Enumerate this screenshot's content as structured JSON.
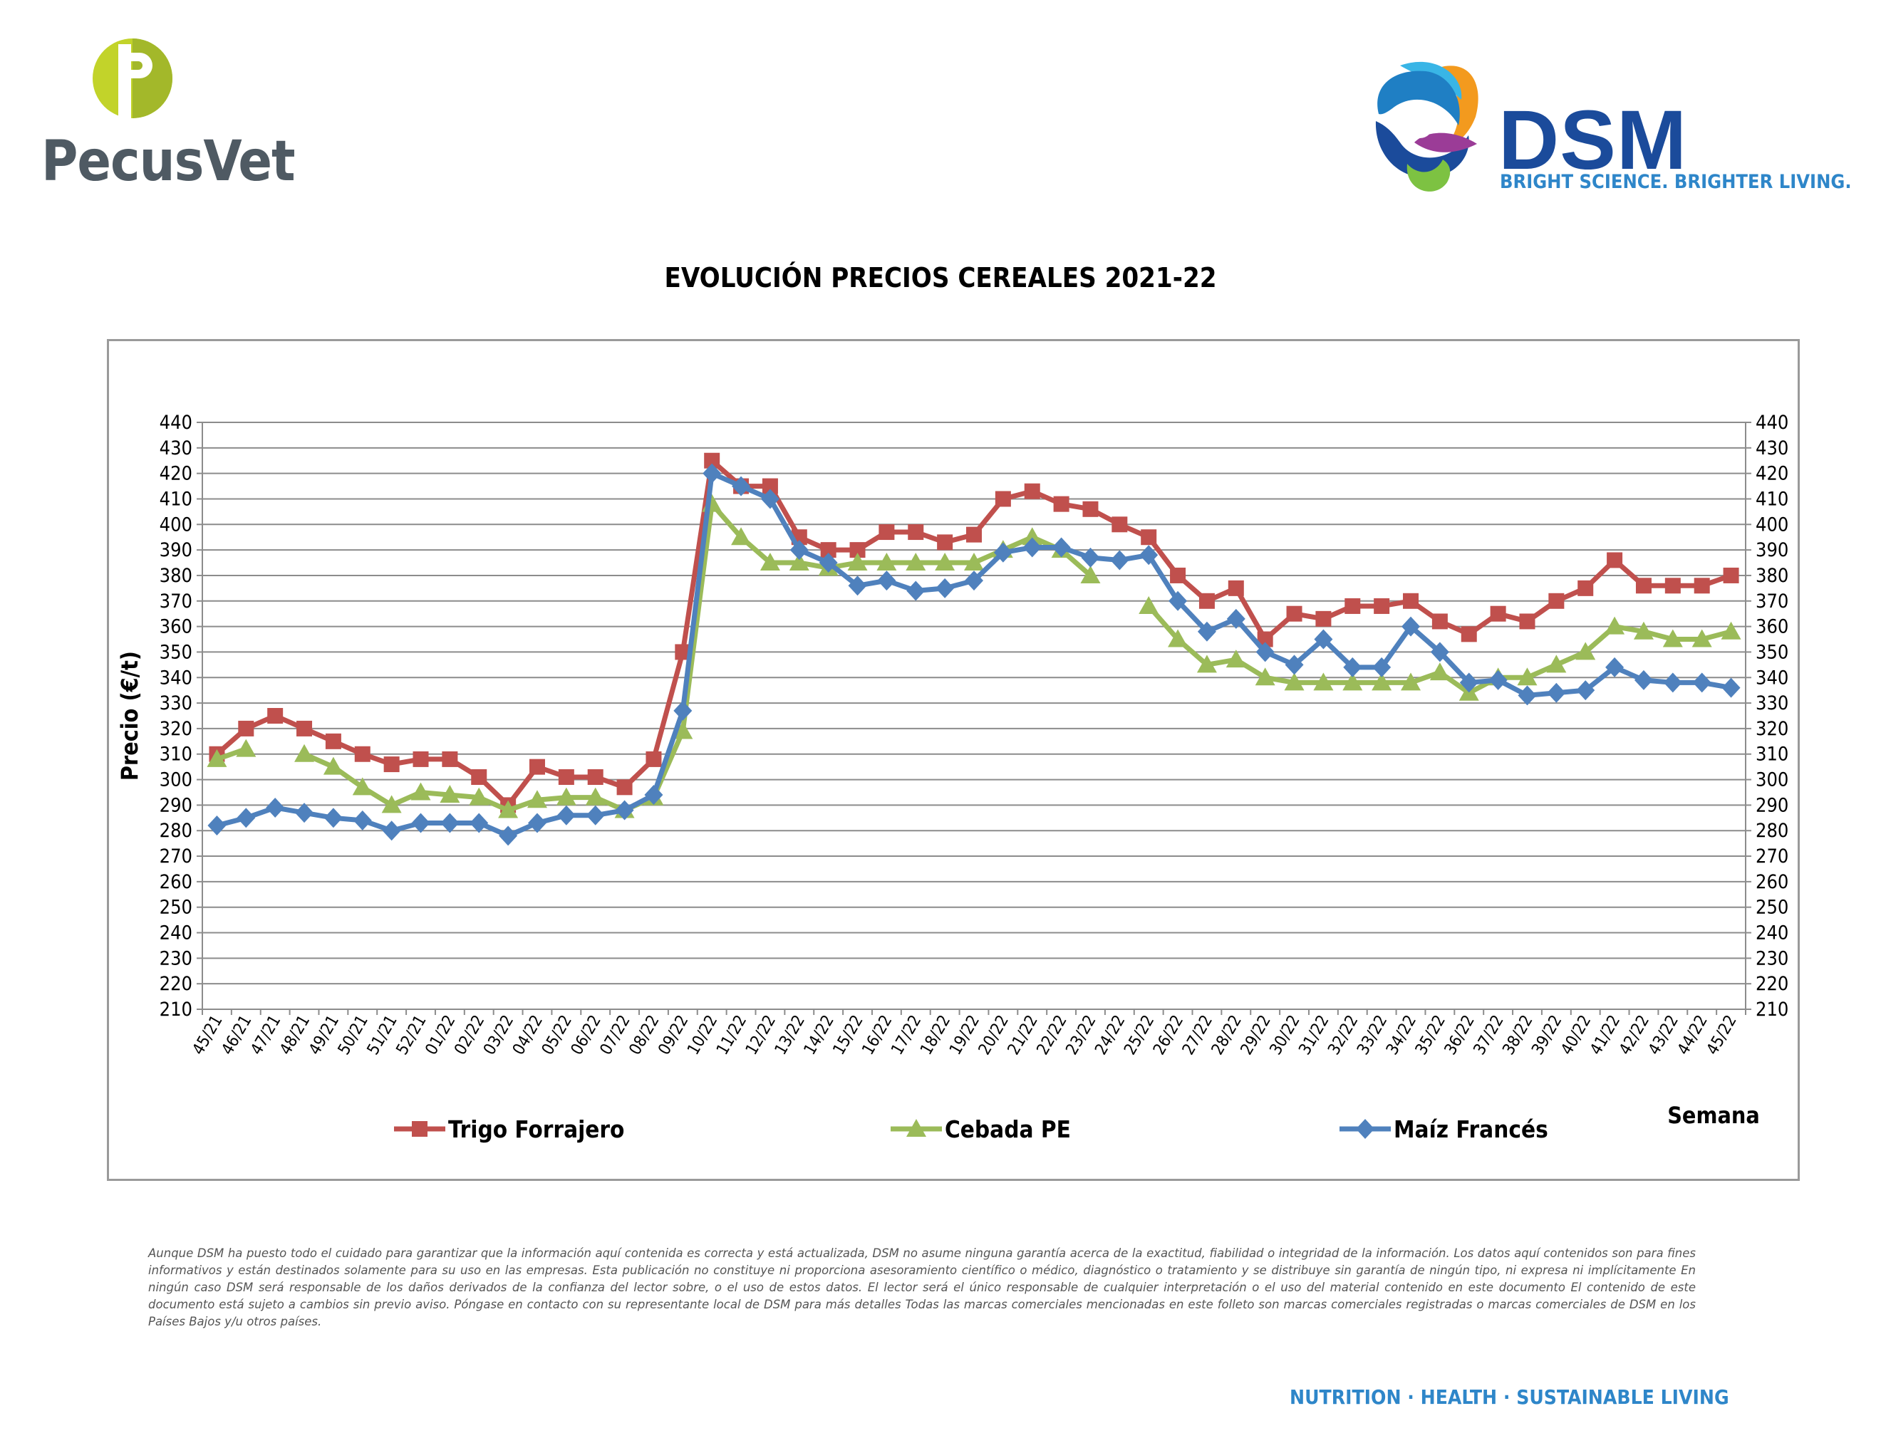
{
  "logos": {
    "pecusvet_name": "PecusVet",
    "dsm_name": "DSM",
    "dsm_tagline": "BRIGHT SCIENCE. BRIGHTER LIVING."
  },
  "footer": {
    "disclaimer": "Aunque DSM ha puesto todo el cuidado para garantizar que la información aquí contenida es correcta y está actualizada, DSM no asume ninguna garantía acerca de la exactitud, fiabilidad o integridad de la información. Los datos aquí contenidos son para fines informativos y están destinados solamente para su uso en las empresas. Esta publicación no constituye ni proporciona asesoramiento científico o médico, diagnóstico o tratamiento y se distribuye sin garantía de ningún tipo, ni expresa ni implícitamente En ningún caso DSM será responsable de los daños derivados de la confianza del lector sobre, o el uso de estos datos. El lector será el único responsable de cualquier interpretación o el uso del material contenido en este documento El contenido de este documento está sujeto a cambios sin previo aviso. Póngase en contacto con su representante local de DSM para más detalles Todas las marcas comerciales mencionadas en este folleto son marcas comerciales registradas o marcas comerciales de DSM en los Países Bajos y/u otros países.",
    "slogan": "NUTRITION · HEALTH · SUSTAINABLE LIVING"
  },
  "chart_data": {
    "type": "line",
    "title": "EVOLUCIÓN PRECIOS CEREALES 2021-22",
    "xlabel": "Semana",
    "ylabel": "Precio (€/t)",
    "ylim": [
      210,
      440
    ],
    "ytick_step": 10,
    "grid": true,
    "secondary_y_axis": true,
    "legend_position": "bottom",
    "categories": [
      "45/21",
      "46/21",
      "47/21",
      "48/21",
      "49/21",
      "50/21",
      "51/21",
      "52/21",
      "01/22",
      "02/22",
      "03/22",
      "04/22",
      "05/22",
      "06/22",
      "07/22",
      "08/22",
      "09/22",
      "10/22",
      "11/22",
      "12/22",
      "13/22",
      "14/22",
      "15/22",
      "16/22",
      "17/22",
      "18/22",
      "19/22",
      "20/22",
      "21/22",
      "22/22",
      "23/22",
      "24/22",
      "25/22",
      "26/22",
      "27/22",
      "28/22",
      "29/22",
      "30/22",
      "31/22",
      "32/22",
      "33/22",
      "34/22",
      "35/22",
      "36/22",
      "37/22",
      "38/22",
      "39/22",
      "40/22",
      "41/22",
      "42/22",
      "43/22",
      "44/22",
      "45/22"
    ],
    "series": [
      {
        "name": "Trigo Forrajero",
        "color": "#c0504d",
        "marker": "square",
        "values": [
          310,
          320,
          325,
          320,
          315,
          310,
          306,
          308,
          308,
          301,
          290,
          305,
          301,
          301,
          297,
          308,
          350,
          425,
          415,
          415,
          395,
          390,
          390,
          397,
          397,
          393,
          396,
          410,
          413,
          408,
          406,
          400,
          395,
          380,
          370,
          375,
          355,
          365,
          363,
          368,
          368,
          370,
          362,
          357,
          365,
          362,
          370,
          375,
          386,
          376,
          376,
          376,
          380
        ]
      },
      {
        "name": "Cebada PE",
        "color": "#9bbb59",
        "marker": "triangle",
        "values": [
          308,
          312,
          null,
          310,
          305,
          297,
          290,
          295,
          294,
          293,
          288,
          292,
          293,
          293,
          288,
          293,
          319,
          408,
          395,
          385,
          385,
          383,
          385,
          385,
          385,
          385,
          385,
          390,
          395,
          390,
          380,
          null,
          368,
          355,
          345,
          347,
          340,
          338,
          338,
          338,
          338,
          338,
          342,
          334,
          340,
          340,
          345,
          350,
          360,
          358,
          355,
          355,
          358
        ]
      },
      {
        "name": "Maíz Francés",
        "color": "#4f81bd",
        "marker": "diamond",
        "values": [
          282,
          285,
          289,
          287,
          285,
          284,
          280,
          283,
          283,
          283,
          278,
          283,
          286,
          286,
          288,
          294,
          327,
          420,
          415,
          410,
          390,
          385,
          376,
          378,
          374,
          375,
          378,
          389,
          391,
          391,
          387,
          386,
          388,
          370,
          358,
          363,
          350,
          345,
          355,
          344,
          344,
          360,
          350,
          338,
          339,
          333,
          334,
          335,
          344,
          339,
          338,
          338,
          336
        ]
      }
    ]
  }
}
